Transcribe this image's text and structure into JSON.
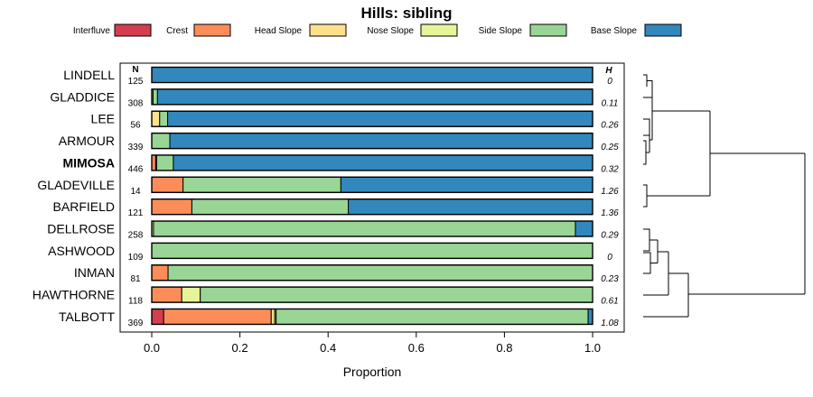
{
  "chart_data": {
    "type": "bar",
    "orientation": "horizontal",
    "stacked": true,
    "title": "Hills: sibling",
    "xlabel": "Proportion",
    "ylabel": "",
    "xlim": [
      -0.07,
      1.07
    ],
    "x_ticks": [
      "0.0",
      "0.2",
      "0.4",
      "0.6",
      "0.8",
      "1.0"
    ],
    "x_tick_values": [
      0,
      0.2,
      0.4,
      0.6,
      0.8,
      1.0
    ],
    "n_header": "N",
    "h_header": "H",
    "legend": [
      {
        "name": "Interfluve",
        "color": "#D53E4F"
      },
      {
        "name": "Crest",
        "color": "#FC8D59"
      },
      {
        "name": "Head Slope",
        "color": "#FEE08B"
      },
      {
        "name": "Nose Slope",
        "color": "#E6F598"
      },
      {
        "name": "Side Slope",
        "color": "#99D594"
      },
      {
        "name": "Base Slope",
        "color": "#3288BD"
      }
    ],
    "rows": [
      {
        "name": "LINDELL",
        "n": "125",
        "h": "0",
        "bold": false,
        "values": [
          0,
          0,
          0,
          0,
          0,
          1.0
        ]
      },
      {
        "name": "GLADDICE",
        "n": "308",
        "h": "0.11",
        "bold": false,
        "values": [
          0,
          0,
          0,
          0.003,
          0.01,
          0.987
        ]
      },
      {
        "name": "LEE",
        "n": "56",
        "h": "0.26",
        "bold": false,
        "values": [
          0,
          0,
          0.018,
          0,
          0.018,
          0.964
        ]
      },
      {
        "name": "ARMOUR",
        "n": "339",
        "h": "0.25",
        "bold": false,
        "values": [
          0,
          0,
          0,
          0,
          0.041,
          0.959
        ]
      },
      {
        "name": "MIMOSA",
        "n": "446",
        "h": "0.32",
        "bold": true,
        "values": [
          0,
          0.009,
          0.002,
          0,
          0.038,
          0.951
        ]
      },
      {
        "name": "GLADEVILLE",
        "n": "14",
        "h": "1.26",
        "bold": false,
        "values": [
          0,
          0.071,
          0,
          0,
          0.358,
          0.571
        ]
      },
      {
        "name": "BARFIELD",
        "n": "121",
        "h": "1.36",
        "bold": false,
        "values": [
          0,
          0.091,
          0,
          0,
          0.355,
          0.554
        ]
      },
      {
        "name": "DELLROSE",
        "n": "258",
        "h": "0.29",
        "bold": false,
        "values": [
          0,
          0,
          0,
          0.004,
          0.957,
          0.039
        ]
      },
      {
        "name": "ASHWOOD",
        "n": "109",
        "h": "0",
        "bold": false,
        "values": [
          0,
          0,
          0,
          0,
          1.0,
          0
        ]
      },
      {
        "name": "INMAN",
        "n": "81",
        "h": "0.23",
        "bold": false,
        "values": [
          0,
          0.037,
          0,
          0,
          0.963,
          0
        ]
      },
      {
        "name": "HAWTHORNE",
        "n": "118",
        "h": "0.61",
        "bold": false,
        "values": [
          0,
          0.068,
          0,
          0.042,
          0.89,
          0
        ]
      },
      {
        "name": "TALBOTT",
        "n": "369",
        "h": "1.08",
        "bold": false,
        "values": [
          0.027,
          0.244,
          0.008,
          0.003,
          0.708,
          0.01
        ]
      }
    ]
  }
}
